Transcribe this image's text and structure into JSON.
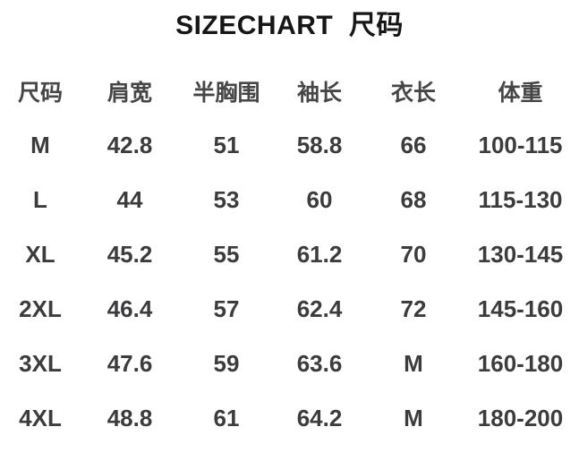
{
  "page": {
    "title": "SIZECHART  尺码"
  },
  "colors": {
    "background": "#ffffff",
    "title_text": "#161616",
    "table_text": "#3c3c3e",
    "header_text": "#464646"
  },
  "chart_data": {
    "type": "table",
    "title": "SIZECHART  尺码",
    "columns": [
      "尺码",
      "肩宽",
      "半胸围",
      "袖长",
      "衣长",
      "体重"
    ],
    "rows": [
      [
        "M",
        "42.8",
        "51",
        "58.8",
        "66",
        "100-115"
      ],
      [
        "L",
        "44",
        "53",
        "60",
        "68",
        "115-130"
      ],
      [
        "XL",
        "45.2",
        "55",
        "61.2",
        "70",
        "130-145"
      ],
      [
        "2XL",
        "46.4",
        "57",
        "62.4",
        "72",
        "145-160"
      ],
      [
        "3XL",
        "47.6",
        "59",
        "63.6",
        "M",
        "160-180"
      ],
      [
        "4XL",
        "48.8",
        "61",
        "64.2",
        "M",
        "180-200"
      ]
    ],
    "layout": {
      "grid_lines": false,
      "legend": "none",
      "text_align": "center"
    }
  }
}
